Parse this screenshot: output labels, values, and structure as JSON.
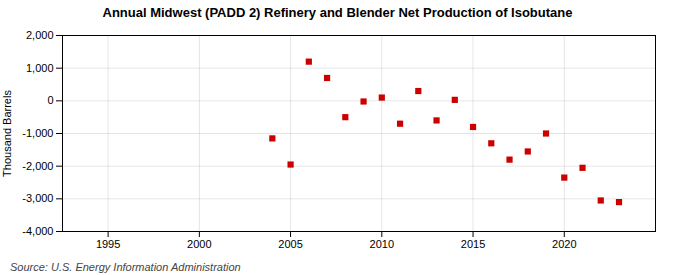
{
  "chart_data": {
    "type": "scatter",
    "title": "Annual Midwest (PADD 2) Refinery and Blender Net Production of Isobutane",
    "ylabel": "Thousand Barrels",
    "caption": "Source: U.S. Energy Information Administration",
    "x": [
      2004,
      2005,
      2006,
      2007,
      2008,
      2009,
      2010,
      2011,
      2012,
      2013,
      2014,
      2015,
      2016,
      2017,
      2018,
      2019,
      2020,
      2021,
      2022,
      2023
    ],
    "values": [
      -1150,
      -1950,
      1200,
      700,
      -500,
      -20,
      100,
      -700,
      300,
      -600,
      30,
      -800,
      -1300,
      -1800,
      -1550,
      -1000,
      -2350,
      -2050,
      -3050,
      -3100
    ],
    "color": "#cc0000",
    "marker": "square",
    "xlim": [
      1992.5,
      2025
    ],
    "xticks": [
      1995,
      2000,
      2005,
      2010,
      2015,
      2020
    ],
    "ylim": [
      -4000,
      2000
    ],
    "yticks": [
      {
        "value": -4000,
        "label": "-4,000"
      },
      {
        "value": -3000,
        "label": "-3,000"
      },
      {
        "value": -2000,
        "label": "-2,000"
      },
      {
        "value": -1000,
        "label": "-1,000"
      },
      0,
      {
        "value": 1000,
        "label": "1,000"
      },
      {
        "value": 2000,
        "label": "2,000"
      }
    ],
    "grid": true
  }
}
